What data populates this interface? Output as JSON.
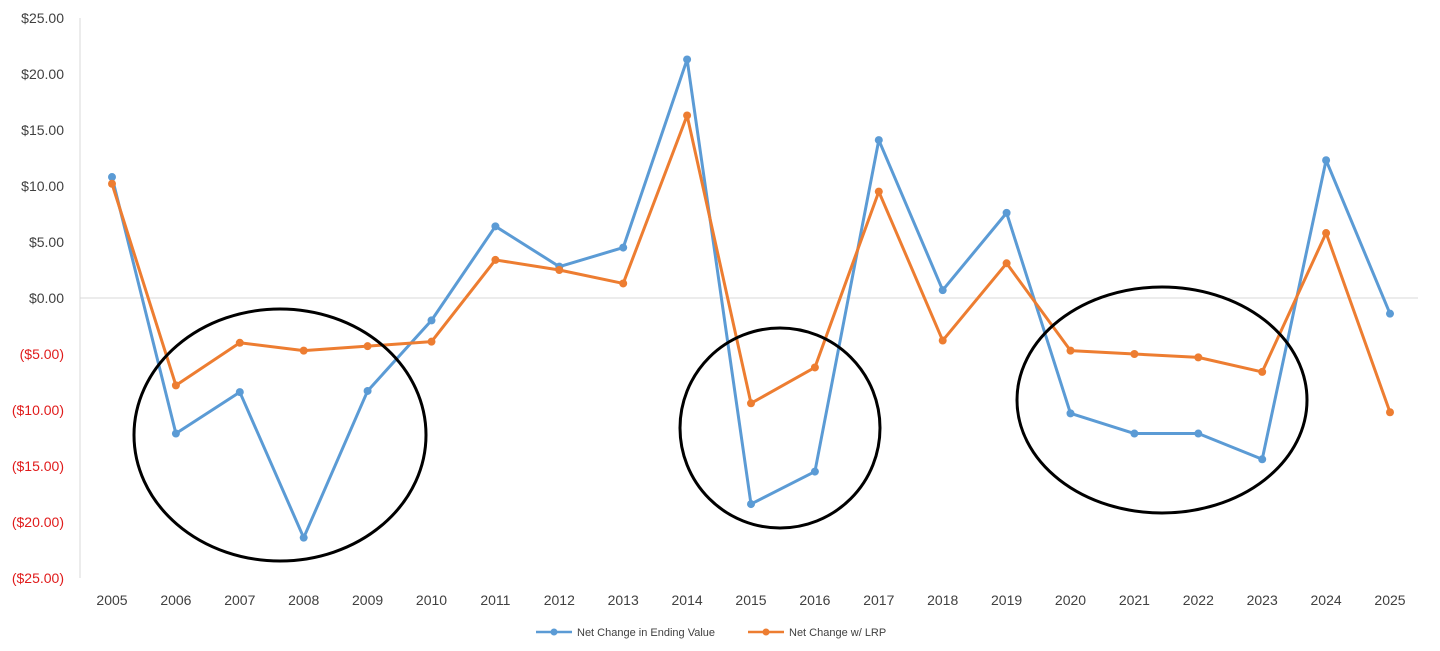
{
  "chart_data": {
    "type": "line",
    "title": "",
    "xlabel": "",
    "ylabel": "",
    "ylim": [
      -25,
      25
    ],
    "yticks": [
      {
        "value": 25,
        "label": "$25.00"
      },
      {
        "value": 20,
        "label": "$20.00"
      },
      {
        "value": 15,
        "label": "$15.00"
      },
      {
        "value": 10,
        "label": "$10.00"
      },
      {
        "value": 5,
        "label": "$5.00"
      },
      {
        "value": 0,
        "label": "$0.00"
      },
      {
        "value": -5,
        "label": "($5.00)"
      },
      {
        "value": -10,
        "label": "($10.00)"
      },
      {
        "value": -15,
        "label": "($15.00)"
      },
      {
        "value": -20,
        "label": "($20.00)"
      },
      {
        "value": -25,
        "label": "($25.00)"
      }
    ],
    "categories": [
      "2005",
      "2006",
      "2007",
      "2008",
      "2009",
      "2010",
      "2011",
      "2012",
      "2013",
      "2014",
      "2015",
      "2016",
      "2017",
      "2018",
      "2019",
      "2020",
      "2021",
      "2022",
      "2023",
      "2024",
      "2025"
    ],
    "series": [
      {
        "name": "Net Change in Ending Value",
        "color": "#5b9bd5",
        "values": [
          10.8,
          -12.1,
          -8.4,
          -21.4,
          -8.3,
          -2.0,
          6.4,
          2.8,
          4.5,
          21.3,
          -18.4,
          -15.5,
          14.1,
          0.7,
          7.6,
          -10.3,
          -12.1,
          -12.1,
          -14.4,
          12.3,
          -1.4
        ]
      },
      {
        "name": "Net Change w/ LRP",
        "color": "#ed7d31",
        "values": [
          10.2,
          -7.8,
          -4.0,
          -4.7,
          -4.3,
          -3.9,
          3.4,
          2.5,
          1.3,
          16.3,
          -9.4,
          -6.2,
          9.5,
          -3.8,
          3.1,
          -4.7,
          -5.0,
          -5.3,
          -6.6,
          5.8,
          -10.2
        ]
      }
    ],
    "annotations": [
      {
        "type": "ellipse",
        "color": "#000000",
        "span": [
          "2006",
          "2009"
        ]
      },
      {
        "type": "ellipse",
        "color": "#000000",
        "span": [
          "2015",
          "2016"
        ]
      },
      {
        "type": "ellipse",
        "color": "#000000",
        "span": [
          "2020",
          "2023"
        ]
      }
    ],
    "negative_label_color": "#e01b1b",
    "grid": false,
    "legend_position": "bottom"
  }
}
